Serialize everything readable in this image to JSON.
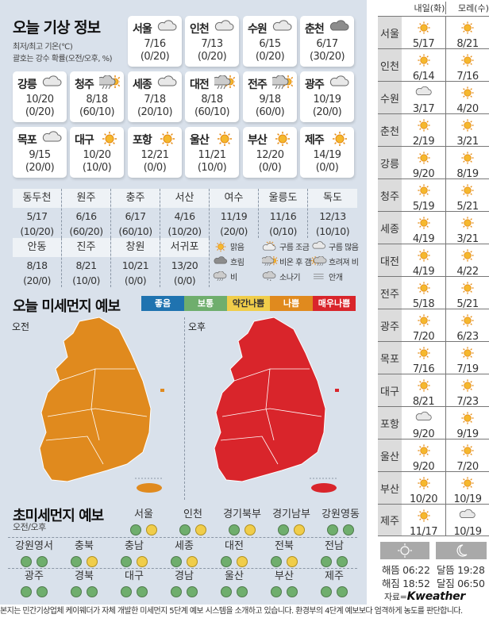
{
  "today": {
    "title": "오늘 기상 정보",
    "note1": "최저/최고 기온(℃)",
    "note2": "괄호는 강수 확률(오전/오후, %)",
    "cards": [
      {
        "name": "서울",
        "icon": "cloud",
        "temp": "7/16",
        "rain": "(0/20)"
      },
      {
        "name": "인천",
        "icon": "cloud",
        "temp": "7/13",
        "rain": "(0/20)"
      },
      {
        "name": "수원",
        "icon": "cloud",
        "temp": "6/15",
        "rain": "(0/20)"
      },
      {
        "name": "춘천",
        "icon": "dark-cloud",
        "temp": "6/17",
        "rain": "(30/20)"
      },
      {
        "name": "강릉",
        "icon": "cloud",
        "temp": "10/20",
        "rain": "(0/20)"
      },
      {
        "name": "청주",
        "icon": "rain-then-clear",
        "temp": "8/18",
        "rain": "(60/10)"
      },
      {
        "name": "세종",
        "icon": "cloud",
        "temp": "7/18",
        "rain": "(20/10)"
      },
      {
        "name": "대전",
        "icon": "rain-then-clear",
        "temp": "8/18",
        "rain": "(60/10)"
      },
      {
        "name": "전주",
        "icon": "rain-then-clear",
        "temp": "9/18",
        "rain": "(60/0)"
      },
      {
        "name": "광주",
        "icon": "cloud",
        "temp": "10/19",
        "rain": "(20/0)"
      },
      {
        "name": "목포",
        "icon": "cloud",
        "temp": "9/15",
        "rain": "(20/0)"
      },
      {
        "name": "대구",
        "icon": "sun",
        "temp": "10/20",
        "rain": "(10/0)"
      },
      {
        "name": "포항",
        "icon": "sun",
        "temp": "12/21",
        "rain": "(0/0)"
      },
      {
        "name": "울산",
        "icon": "sun",
        "temp": "11/21",
        "rain": "(10/0)"
      },
      {
        "name": "부산",
        "icon": "sun",
        "temp": "12/20",
        "rain": "(0/0)"
      },
      {
        "name": "제주",
        "icon": "sun",
        "temp": "14/19",
        "rain": "(0/0)"
      }
    ],
    "table": [
      {
        "name": "동두천",
        "temp": "5/17",
        "rain": "(10/20)"
      },
      {
        "name": "원주",
        "temp": "6/16",
        "rain": "(60/20)"
      },
      {
        "name": "충주",
        "temp": "6/17",
        "rain": "(60/10)"
      },
      {
        "name": "서산",
        "temp": "4/16",
        "rain": "(10/20)"
      },
      {
        "name": "여수",
        "temp": "11/19",
        "rain": "(20/0)"
      },
      {
        "name": "울릉도",
        "temp": "11/16",
        "rain": "(0/10)"
      },
      {
        "name": "독도",
        "temp": "12/13",
        "rain": "(10/10)"
      },
      {
        "name": "안동",
        "temp": "8/18",
        "rain": "(20/0)"
      },
      {
        "name": "진주",
        "temp": "8/21",
        "rain": "(10/0)"
      },
      {
        "name": "창원",
        "temp": "10/21",
        "rain": "(0/0)"
      },
      {
        "name": "서귀포",
        "temp": "13/20",
        "rain": "(0/0)"
      }
    ],
    "legend": [
      {
        "icon": "sun",
        "label": "맑음"
      },
      {
        "icon": "partly-cloudy",
        "label": "구름 조금"
      },
      {
        "icon": "cloud",
        "label": "구름 많음"
      },
      {
        "icon": "dark-cloud",
        "label": "흐림"
      },
      {
        "icon": "rain-then-clear",
        "label": "비온 후 갬"
      },
      {
        "icon": "clear-then-rain",
        "label": "흐려져 비"
      },
      {
        "icon": "rain",
        "label": "비"
      },
      {
        "icon": "shower",
        "label": "소나기"
      },
      {
        "icon": "fog",
        "label": "안개"
      }
    ]
  },
  "pm10": {
    "title": "오늘 미세먼지 예보",
    "am": "오전",
    "pm": "오후",
    "scale": [
      {
        "label": "좋음",
        "color": "#1f73b0"
      },
      {
        "label": "보통",
        "color": "#6fae6d"
      },
      {
        "label": "약간나쁨",
        "color": "#f0cd4a"
      },
      {
        "label": "나쁨",
        "color": "#e08a1e"
      },
      {
        "label": "매우나쁨",
        "color": "#d9252b"
      }
    ],
    "am_color": "#e08a1e",
    "pm_color": "#d9252b"
  },
  "pm25": {
    "title": "초미세먼지 예보",
    "sub": "오전/오후",
    "good": "#6fae6d",
    "normal": "#f0cd4a",
    "regions": [
      {
        "name": "서울",
        "am": "good",
        "pm": "normal"
      },
      {
        "name": "인천",
        "am": "good",
        "pm": "normal"
      },
      {
        "name": "경기북부",
        "am": "good",
        "pm": "normal"
      },
      {
        "name": "경기남부",
        "am": "good",
        "pm": "normal"
      },
      {
        "name": "강원영동",
        "am": "good",
        "pm": "good"
      },
      {
        "name": "강원영서",
        "am": "good",
        "pm": "good"
      },
      {
        "name": "충북",
        "am": "good",
        "pm": "normal"
      },
      {
        "name": "충남",
        "am": "good",
        "pm": "normal"
      },
      {
        "name": "세종",
        "am": "good",
        "pm": "normal"
      },
      {
        "name": "대전",
        "am": "good",
        "pm": "normal"
      },
      {
        "name": "전북",
        "am": "good",
        "pm": "normal"
      },
      {
        "name": "전남",
        "am": "good",
        "pm": "good"
      },
      {
        "name": "광주",
        "am": "good",
        "pm": "good"
      },
      {
        "name": "경북",
        "am": "good",
        "pm": "good"
      },
      {
        "name": "대구",
        "am": "good",
        "pm": "good"
      },
      {
        "name": "경남",
        "am": "good",
        "pm": "good"
      },
      {
        "name": "울산",
        "am": "good",
        "pm": "good"
      },
      {
        "name": "부산",
        "am": "good",
        "pm": "good"
      },
      {
        "name": "제주",
        "am": "good",
        "pm": "good"
      }
    ]
  },
  "forecast": {
    "tomorrow": "내일(화)",
    "dayafter": "모레(수)",
    "rows": [
      {
        "name": "서울",
        "d1": {
          "icon": "sun",
          "temp": "5/17"
        },
        "d2": {
          "icon": "sun",
          "temp": "8/21"
        }
      },
      {
        "name": "인천",
        "d1": {
          "icon": "sun",
          "temp": "6/14"
        },
        "d2": {
          "icon": "sun",
          "temp": "7/16"
        }
      },
      {
        "name": "수원",
        "d1": {
          "icon": "cloud",
          "temp": "3/17"
        },
        "d2": {
          "icon": "sun",
          "temp": "4/20"
        }
      },
      {
        "name": "춘천",
        "d1": {
          "icon": "sun",
          "temp": "2/19"
        },
        "d2": {
          "icon": "sun",
          "temp": "3/21"
        }
      },
      {
        "name": "강릉",
        "d1": {
          "icon": "sun",
          "temp": "9/20"
        },
        "d2": {
          "icon": "sun",
          "temp": "8/19"
        }
      },
      {
        "name": "청주",
        "d1": {
          "icon": "sun",
          "temp": "5/19"
        },
        "d2": {
          "icon": "sun",
          "temp": "5/21"
        }
      },
      {
        "name": "세종",
        "d1": {
          "icon": "sun",
          "temp": "4/19"
        },
        "d2": {
          "icon": "sun",
          "temp": "3/21"
        }
      },
      {
        "name": "대전",
        "d1": {
          "icon": "sun",
          "temp": "4/19"
        },
        "d2": {
          "icon": "sun",
          "temp": "4/22"
        }
      },
      {
        "name": "전주",
        "d1": {
          "icon": "sun",
          "temp": "5/18"
        },
        "d2": {
          "icon": "sun",
          "temp": "5/21"
        }
      },
      {
        "name": "광주",
        "d1": {
          "icon": "sun",
          "temp": "7/20"
        },
        "d2": {
          "icon": "sun",
          "temp": "6/23"
        }
      },
      {
        "name": "목포",
        "d1": {
          "icon": "sun",
          "temp": "7/16"
        },
        "d2": {
          "icon": "sun",
          "temp": "7/19"
        }
      },
      {
        "name": "대구",
        "d1": {
          "icon": "sun",
          "temp": "8/21"
        },
        "d2": {
          "icon": "sun",
          "temp": "7/23"
        }
      },
      {
        "name": "포항",
        "d1": {
          "icon": "cloud",
          "temp": "9/20"
        },
        "d2": {
          "icon": "sun",
          "temp": "9/19"
        }
      },
      {
        "name": "울산",
        "d1": {
          "icon": "sun",
          "temp": "9/20"
        },
        "d2": {
          "icon": "sun",
          "temp": "7/20"
        }
      },
      {
        "name": "부산",
        "d1": {
          "icon": "sun",
          "temp": "10/20"
        },
        "d2": {
          "icon": "sun",
          "temp": "10/19"
        }
      },
      {
        "name": "제주",
        "d1": {
          "icon": "sun",
          "temp": "11/17"
        },
        "d2": {
          "icon": "cloud",
          "temp": "10/19"
        }
      }
    ]
  },
  "astro": {
    "sunrise": "해뜸 06:22",
    "sunset": "해짐 18:52",
    "moonrise": "달뜸 19:28",
    "moonset": "달짐 06:50",
    "source": "자료=",
    "brand": "Kweather"
  },
  "footer": "본지는 민간기상업체 케이웨더가 자체 개발한 미세먼지 5단계 예보 시스템을 소개하고 있습니다. 환경부의 4단계 예보보다 엄격하게 농도를 판단합니다."
}
